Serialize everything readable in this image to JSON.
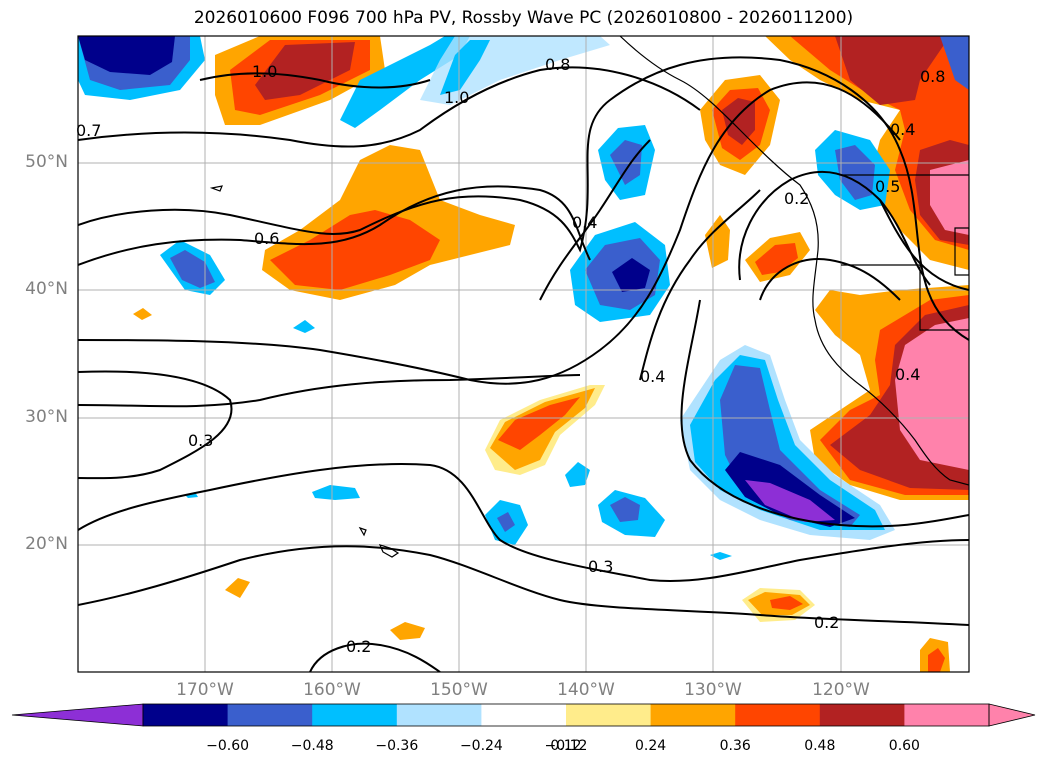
{
  "title": "2026010600 F096 700 hPa PV, Rossby Wave PC (2026010800 - 2026011200)",
  "axes": {
    "lat_labels": [
      "50°N",
      "40°N",
      "30°N",
      "20°N"
    ],
    "lon_labels": [
      "170°W",
      "160°W",
      "150°W",
      "140°W",
      "130°W",
      "120°W"
    ]
  },
  "contour_labels": [
    "1.0",
    "0.8",
    "1.0",
    "0.7",
    "0.6",
    "0.4",
    "0.2",
    "0.5",
    "0.8",
    "0.4",
    "0.4",
    "0.3",
    "0.3",
    "0.2",
    "0.2",
    "0.4"
  ],
  "colorbar": {
    "ticks": [
      "−0.60",
      "−0.48",
      "−0.36",
      "−0.24",
      "−0.12",
      "0.12",
      "0.24",
      "0.36",
      "0.48",
      "0.60"
    ],
    "colors": [
      "#8d2fd6",
      "#00008b",
      "#3a5fcd",
      "#00bfff",
      "#b0e2ff",
      "#ffffff",
      "#ffec8b",
      "#ffa500",
      "#ff4500",
      "#b22222",
      "#ff82ab",
      "#ff82ab"
    ]
  }
}
